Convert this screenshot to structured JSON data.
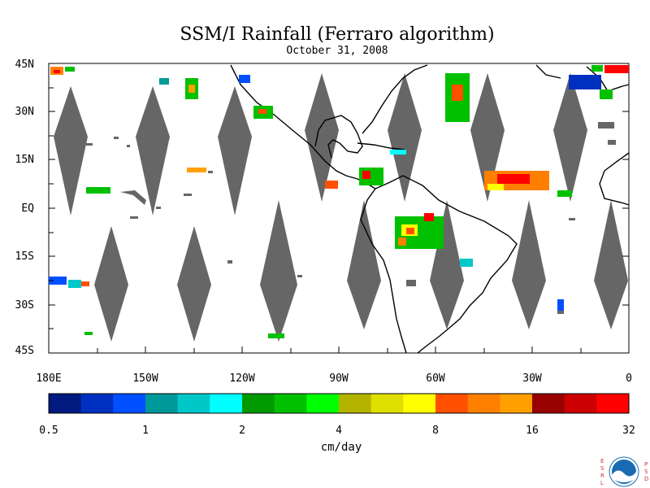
{
  "title": "SSM/I Rainfall (Ferraro algorithm)",
  "subtitle": "October 31, 2008",
  "y_axis_labels": [
    "45N",
    "30N",
    "15N",
    "EQ",
    "15S",
    "30S",
    "45S"
  ],
  "x_axis_labels": [
    "180E",
    "150W",
    "120W",
    "90W",
    "60W",
    "30W",
    "0"
  ],
  "colorbar": {
    "ticks": [
      "0.5",
      "1",
      "2",
      "4",
      "8",
      "16",
      "32"
    ],
    "unit": "cm/day",
    "colors": [
      "#001a80",
      "#0030c0",
      "#0050ff",
      "#00999a",
      "#00c8c8",
      "#00ffff",
      "#009900",
      "#00c000",
      "#00ff00",
      "#b4b400",
      "#e0e000",
      "#ffff00",
      "#ff5000",
      "#ff8000",
      "#ffa000",
      "#990000",
      "#cc0000",
      "#ff0000"
    ]
  },
  "logo": {
    "left_letters": [
      "E",
      "S",
      "R",
      "L"
    ],
    "right_letters": [
      "P",
      "S",
      "D"
    ],
    "center_text": "NOAA"
  },
  "swath_gap_color": "#666666",
  "coastline_color": "#000000"
}
